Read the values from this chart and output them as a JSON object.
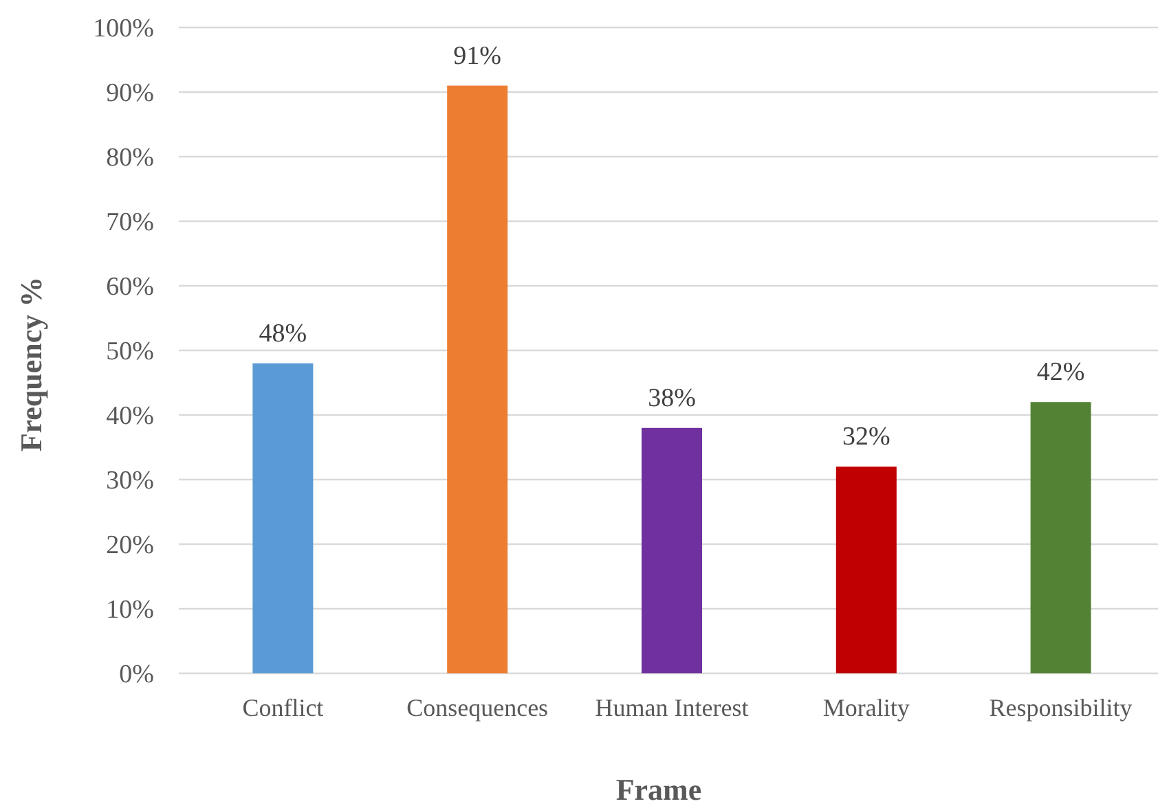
{
  "chart_data": {
    "type": "bar",
    "xlabel": "Frame",
    "ylabel": "Frequency %",
    "categories": [
      "Conflict",
      "Consequences",
      "Human Interest",
      "Morality",
      "Responsibility"
    ],
    "values": [
      48,
      91,
      38,
      32,
      42
    ],
    "colors": [
      "#5b9bd5",
      "#ed7d31",
      "#7030a0",
      "#c00000",
      "#548235"
    ],
    "value_labels": [
      "48%",
      "91%",
      "38%",
      "32%",
      "42%"
    ],
    "ylim": [
      0,
      100
    ],
    "yticks": [
      {
        "value": 0,
        "label": "0%"
      },
      {
        "value": 10,
        "label": "10%"
      },
      {
        "value": 20,
        "label": "20%"
      },
      {
        "value": 30,
        "label": "30%"
      },
      {
        "value": 40,
        "label": "40%"
      },
      {
        "value": 50,
        "label": "50%"
      },
      {
        "value": 60,
        "label": "60%"
      },
      {
        "value": 70,
        "label": "70%"
      },
      {
        "value": 80,
        "label": "80%"
      },
      {
        "value": 90,
        "label": "90%"
      },
      {
        "value": 100,
        "label": "100%"
      }
    ],
    "grid": "y"
  }
}
